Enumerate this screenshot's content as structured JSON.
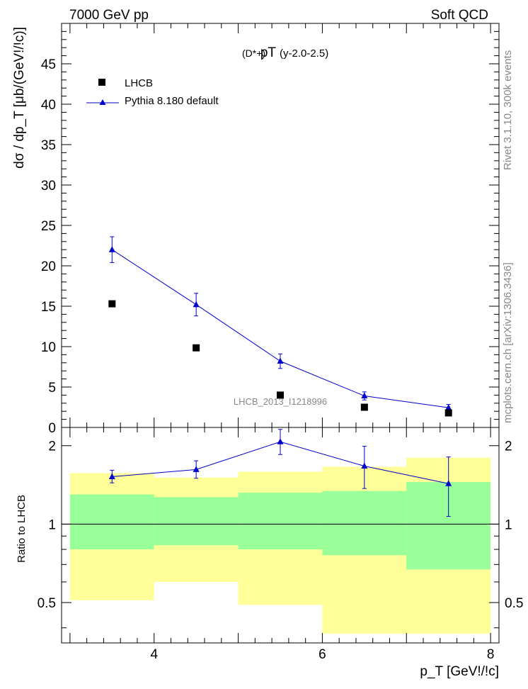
{
  "header": {
    "left": "7000 GeV pp",
    "right": "Soft QCD"
  },
  "side_labels": {
    "rivet": "Rivet 3.1.10,  300k events",
    "mcplots": "mcplots.cern.ch [arXiv:1306.3436]"
  },
  "main_panel": {
    "title_main": "pT",
    "title_particle": "(D*+)",
    "title_range": "(y-2.0-2.5)",
    "ylabel": "dσ / dp_T [μb/(GeV!/!c)]",
    "analysis_id": "LHCB_2013_I1218996",
    "legend": {
      "data": "LHCB",
      "mc": "Pythia 8.180 default"
    }
  },
  "ratio_panel": {
    "ylabel": "Ratio to LHCB"
  },
  "xlabel": "p_T [GeV!/!c]",
  "colors": {
    "data": "#000000",
    "mc": "#0000cc",
    "band_inner": "#99ff99",
    "band_outer": "#ffff99"
  },
  "chart_data": [
    {
      "type": "scatter",
      "title": "pT(D*+) (y-2.0-2.5)",
      "xlabel": "p_T [GeV!/!c]",
      "ylabel": "dσ / dp_T [μb/(GeV!/!c)]",
      "xlim": [
        2.9,
        8.1
      ],
      "ylim": [
        0,
        50
      ],
      "y_ticks": [
        0,
        5,
        10,
        15,
        20,
        25,
        30,
        35,
        40,
        45
      ],
      "legend_position": "top-left",
      "series": [
        {
          "name": "LHCB",
          "marker": "square",
          "x": [
            3.5,
            4.5,
            5.5,
            6.5,
            7.5
          ],
          "y": [
            15.3,
            9.85,
            4.0,
            2.5,
            1.8
          ]
        },
        {
          "name": "Pythia 8.180 default",
          "marker": "triangle-line",
          "x": [
            3.5,
            4.5,
            5.5,
            6.5,
            7.5
          ],
          "y": [
            22.0,
            15.2,
            8.2,
            3.9,
            2.45
          ],
          "yerr": [
            1.6,
            1.4,
            0.9,
            0.5,
            0.4
          ]
        }
      ]
    },
    {
      "type": "line",
      "ylabel": "Ratio to LHCB",
      "xlim": [
        2.9,
        8.1
      ],
      "ylim": [
        0.35,
        2.35
      ],
      "y_ticks": [
        0.5,
        1,
        2
      ],
      "x_ticks": [
        4,
        6,
        8
      ],
      "reference_line": 1,
      "uncertainty_bands": {
        "x_edges": [
          3,
          4,
          5,
          6,
          7,
          8
        ],
        "inner_low": [
          0.8,
          0.83,
          0.8,
          0.76,
          0.67
        ],
        "inner_high": [
          1.3,
          1.27,
          1.32,
          1.34,
          1.45
        ],
        "outer_low": [
          0.51,
          0.6,
          0.49,
          0.38,
          0.38
        ],
        "outer_high": [
          1.57,
          1.51,
          1.59,
          1.66,
          1.8
        ]
      },
      "series": [
        {
          "name": "Pythia 8.180 default",
          "x": [
            3.5,
            4.5,
            5.5,
            6.5,
            7.5
          ],
          "y": [
            1.52,
            1.62,
            2.07,
            1.67,
            1.43
          ],
          "yerr_low": [
            0.08,
            0.12,
            0.22,
            0.3,
            0.36
          ],
          "yerr_high": [
            0.09,
            0.13,
            0.24,
            0.32,
            0.38
          ]
        }
      ]
    }
  ]
}
